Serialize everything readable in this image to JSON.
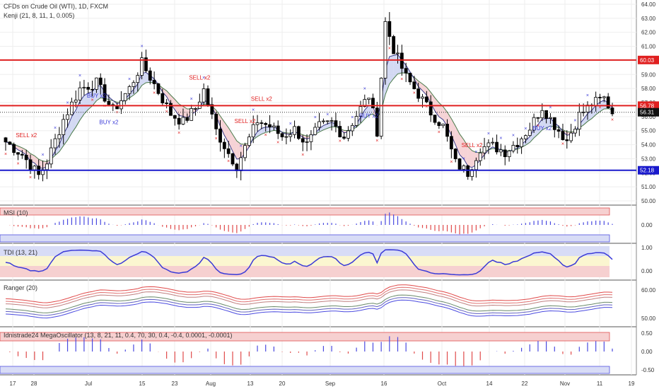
{
  "header": {
    "title": "CFDs on Crude Oil (WTI), 1D, FXCM",
    "indicator": "Kenji (21, 8, 11, 1, 0.005)"
  },
  "chart_data": [
    {
      "type": "candlestick",
      "panel": "price",
      "y_ticks": [
        "64.00",
        "63.00",
        "62.00",
        "61.00",
        "60.00",
        "59.00",
        "58.00",
        "57.00",
        "56.00",
        "55.00",
        "54.00",
        "53.00",
        "52.00",
        "51.00",
        "50.00"
      ],
      "ylim": [
        49.7,
        64.3
      ],
      "x_ticks": [
        "17",
        "28",
        "Jul",
        "15",
        "23",
        "Aug",
        "13",
        "20",
        "Sep",
        "16",
        "Oct",
        "14",
        "22",
        "Nov",
        "11",
        "19"
      ],
      "horizontal_lines": [
        {
          "label": "60.03",
          "value": 60.03,
          "color": "#e02020"
        },
        {
          "label": "56.78",
          "value": 56.78,
          "color": "#e02020"
        },
        {
          "label": "52.18",
          "value": 52.18,
          "color": "#1a1acc"
        }
      ],
      "last_price": {
        "label": "56.31",
        "value": 56.31
      },
      "signals": [
        {
          "text": "BUY x2",
          "day": 22,
          "kind": "buy"
        },
        {
          "text": "BUY x2",
          "day": 25,
          "kind": "buy"
        },
        {
          "text": "SELL x2",
          "day": 5,
          "kind": "sell"
        },
        {
          "text": "SELL x2",
          "day": 47,
          "kind": "sell"
        },
        {
          "text": "SELL x2",
          "day": 58,
          "kind": "sell"
        },
        {
          "text": "SELL x2",
          "day": 62,
          "kind": "sell"
        },
        {
          "text": "BUY x2",
          "day": 88,
          "kind": "buy"
        },
        {
          "text": "SELL x2",
          "day": 113,
          "kind": "sell"
        },
        {
          "text": "BUY x2",
          "day": 130,
          "kind": "buy"
        }
      ],
      "colors": {
        "up": "#ffffff",
        "down": "#000000",
        "fast": "#3a3a8a",
        "slow": "#4a7a4a",
        "bull_fill": "#c8d0f0",
        "bear_fill": "#f4c8cc",
        "sell_mark": "#e02020",
        "buy_mark": "#3a3ad8"
      }
    },
    {
      "type": "bar",
      "panel": "msi",
      "title": "MSI (10)",
      "y_ticks": [
        "0.00"
      ]
    },
    {
      "type": "line",
      "panel": "tdi",
      "title": "TDI (13, 21)",
      "y_ticks": [
        "1.00",
        "0.00"
      ]
    },
    {
      "type": "line",
      "panel": "ranger",
      "title": "Ranger (20)",
      "y_ticks": [
        "60.00",
        "50.00"
      ]
    },
    {
      "type": "bar",
      "panel": "mega",
      "title": "Idnistrade24 MegaOscillator (13, 8, 21, 11, 0.4, 70, 30, 0.4, -0.4, 0.0001, -0.0001)",
      "y_ticks": [
        "0.50",
        "0.00",
        "-0.50"
      ]
    }
  ]
}
